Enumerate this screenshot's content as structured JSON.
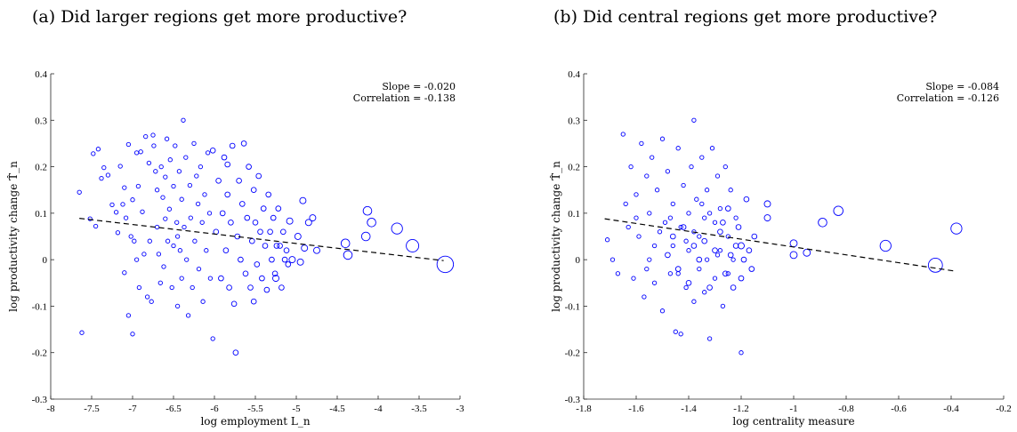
{
  "captions": [
    "(a) Did larger regions get more productive?",
    "(b) Did central regions get more productive?"
  ],
  "chart_data": [
    {
      "type": "scatter",
      "title": "(a) Did larger regions get more productive?",
      "xlabel": "log employment L_n",
      "ylabel": "log productivity change T̂_n",
      "xlim": [
        -8,
        -3
      ],
      "ylim": [
        -0.3,
        0.4
      ],
      "xticks": [
        "-8",
        "-7.5",
        "-7",
        "-6.5",
        "-6",
        "-5.5",
        "-5",
        "-4.5",
        "-4",
        "-3.5",
        "-3"
      ],
      "yticks": [
        "-0.3",
        "-0.2",
        "-0.1",
        "0",
        "0.1",
        "0.2",
        "0.3",
        "0.4"
      ],
      "annotations": [
        "Slope = -0.020",
        "Correlation = -0.138"
      ],
      "fit_line": {
        "x": [
          -7.65,
          -3.2
        ],
        "y": [
          0.089,
          -0.002
        ]
      },
      "color": "#0000ff",
      "points": [
        [
          -7.65,
          0.145,
          1
        ],
        [
          -7.62,
          -0.157,
          1
        ],
        [
          -7.52,
          0.088,
          1
        ],
        [
          -7.48,
          0.228,
          1
        ],
        [
          -7.45,
          0.072,
          1
        ],
        [
          -7.42,
          0.238,
          1
        ],
        [
          -7.38,
          0.175,
          1
        ],
        [
          -7.35,
          0.198,
          1
        ],
        [
          -7.3,
          0.182,
          1
        ],
        [
          -7.25,
          0.118,
          1
        ],
        [
          -7.2,
          0.102,
          1
        ],
        [
          -7.18,
          0.058,
          1
        ],
        [
          -7.15,
          0.201,
          1
        ],
        [
          -7.12,
          0.119,
          1
        ],
        [
          -7.1,
          -0.028,
          1
        ],
        [
          -7.08,
          0.09,
          1
        ],
        [
          -7.05,
          0.248,
          1
        ],
        [
          -7.02,
          0.05,
          1
        ],
        [
          -7.0,
          0.129,
          1
        ],
        [
          -6.98,
          0.04,
          1
        ],
        [
          -6.95,
          0.23,
          1
        ],
        [
          -6.95,
          0.0,
          1
        ],
        [
          -6.93,
          0.158,
          1
        ],
        [
          -6.9,
          0.232,
          1
        ],
        [
          -6.88,
          0.103,
          1
        ],
        [
          -6.86,
          0.012,
          1
        ],
        [
          -6.84,
          0.265,
          1
        ],
        [
          -6.82,
          -0.08,
          1
        ],
        [
          -6.8,
          0.208,
          1
        ],
        [
          -6.79,
          0.04,
          1
        ],
        [
          -6.77,
          -0.09,
          1
        ],
        [
          -6.75,
          0.268,
          1
        ],
        [
          -6.74,
          0.245,
          1
        ],
        [
          -6.72,
          0.19,
          1
        ],
        [
          -6.7,
          0.15,
          1
        ],
        [
          -6.7,
          0.07,
          1
        ],
        [
          -6.68,
          0.012,
          1
        ],
        [
          -6.66,
          -0.05,
          1
        ],
        [
          -6.65,
          0.2,
          1
        ],
        [
          -6.63,
          0.134,
          1
        ],
        [
          -6.62,
          -0.015,
          1
        ],
        [
          -6.6,
          0.088,
          1
        ],
        [
          -6.58,
          0.26,
          1
        ],
        [
          -6.57,
          0.04,
          1
        ],
        [
          -6.55,
          0.109,
          1
        ],
        [
          -6.54,
          0.215,
          1
        ],
        [
          -6.52,
          -0.06,
          1
        ],
        [
          -6.5,
          0.158,
          1
        ],
        [
          -6.5,
          0.03,
          1
        ],
        [
          -6.48,
          0.245,
          1
        ],
        [
          -6.46,
          0.08,
          1
        ],
        [
          -6.45,
          -0.1,
          1
        ],
        [
          -6.43,
          0.19,
          1
        ],
        [
          -6.42,
          0.02,
          1
        ],
        [
          -6.4,
          0.13,
          1
        ],
        [
          -6.4,
          -0.04,
          1
        ],
        [
          -6.38,
          0.3,
          1
        ],
        [
          -6.37,
          0.07,
          1
        ],
        [
          -6.35,
          0.22,
          1
        ],
        [
          -6.34,
          0.0,
          1
        ],
        [
          -6.32,
          -0.12,
          1
        ],
        [
          -6.3,
          0.16,
          1
        ],
        [
          -6.29,
          0.09,
          1
        ],
        [
          -6.27,
          -0.06,
          1
        ],
        [
          -6.25,
          0.25,
          1
        ],
        [
          -6.24,
          0.04,
          1
        ],
        [
          -6.22,
          0.18,
          1
        ],
        [
          -6.2,
          0.12,
          1
        ],
        [
          -6.19,
          -0.02,
          1
        ],
        [
          -6.17,
          0.2,
          1
        ],
        [
          -6.15,
          0.08,
          1
        ],
        [
          -6.14,
          -0.09,
          1
        ],
        [
          -6.12,
          0.14,
          1
        ],
        [
          -6.1,
          0.02,
          1
        ],
        [
          -6.08,
          0.23,
          1
        ],
        [
          -6.06,
          0.1,
          1
        ],
        [
          -6.05,
          -0.04,
          1
        ],
        [
          -6.02,
          -0.17,
          1
        ],
        [
          -7.0,
          -0.16,
          1
        ],
        [
          -7.05,
          -0.12,
          1
        ],
        [
          -6.92,
          -0.06,
          1
        ],
        [
          -7.1,
          0.155,
          1
        ],
        [
          -6.6,
          0.178,
          1
        ],
        [
          -6.45,
          0.05,
          1
        ],
        [
          -6.02,
          0.235,
          1.3
        ],
        [
          -5.98,
          0.06,
          1.3
        ],
        [
          -5.95,
          0.17,
          1.3
        ],
        [
          -5.92,
          -0.04,
          1.3
        ],
        [
          -5.9,
          0.1,
          1.3
        ],
        [
          -5.88,
          0.22,
          1.3
        ],
        [
          -5.86,
          0.02,
          1.3
        ],
        [
          -5.84,
          0.14,
          1.3
        ],
        [
          -5.82,
          -0.06,
          1.3
        ],
        [
          -5.8,
          0.08,
          1.3
        ],
        [
          -5.78,
          0.245,
          1.3
        ],
        [
          -5.76,
          -0.095,
          1.3
        ],
        [
          -5.74,
          -0.2,
          1.3
        ],
        [
          -5.72,
          0.05,
          1.3
        ],
        [
          -5.7,
          0.17,
          1.3
        ],
        [
          -5.68,
          0.0,
          1.3
        ],
        [
          -5.66,
          0.12,
          1.3
        ],
        [
          -5.64,
          0.25,
          1.3
        ],
        [
          -5.62,
          -0.03,
          1.3
        ],
        [
          -5.6,
          0.09,
          1.3
        ],
        [
          -5.58,
          0.2,
          1.3
        ],
        [
          -5.56,
          -0.06,
          1.3
        ],
        [
          -5.54,
          0.04,
          1.3
        ],
        [
          -5.52,
          0.15,
          1.3
        ],
        [
          -5.5,
          0.08,
          1.3
        ],
        [
          -5.48,
          -0.01,
          1.3
        ],
        [
          -5.46,
          0.18,
          1.3
        ],
        [
          -5.44,
          0.06,
          1.3
        ],
        [
          -5.42,
          -0.04,
          1.3
        ],
        [
          -5.4,
          0.11,
          1.3
        ],
        [
          -5.38,
          0.03,
          1.3
        ],
        [
          -5.36,
          -0.065,
          1.3
        ],
        [
          -5.34,
          0.14,
          1.3
        ],
        [
          -5.32,
          0.06,
          1.3
        ],
        [
          -5.3,
          0.0,
          1.3
        ],
        [
          -5.28,
          0.09,
          1.3
        ],
        [
          -5.26,
          -0.03,
          1.3
        ],
        [
          -5.24,
          0.03,
          1.3
        ],
        [
          -5.22,
          0.11,
          1.3
        ],
        [
          -5.2,
          0.03,
          1.3
        ],
        [
          -5.18,
          -0.06,
          1.3
        ],
        [
          -5.16,
          0.06,
          1.3
        ],
        [
          -5.14,
          0.0,
          1.3
        ],
        [
          -5.12,
          0.02,
          1.3
        ],
        [
          -5.1,
          -0.01,
          1.3
        ],
        [
          -5.84,
          0.205,
          1.3
        ],
        [
          -5.52,
          -0.09,
          1.3
        ],
        [
          -5.08,
          0.083,
          1.6
        ],
        [
          -5.05,
          0.0,
          1.6
        ],
        [
          -4.92,
          0.127,
          1.6
        ],
        [
          -4.9,
          0.025,
          1.6
        ],
        [
          -4.85,
          0.08,
          1.6
        ],
        [
          -4.8,
          0.09,
          1.6
        ],
        [
          -4.75,
          0.02,
          1.6
        ],
        [
          -4.95,
          -0.005,
          1.6
        ],
        [
          -4.98,
          0.05,
          1.6
        ],
        [
          -5.25,
          -0.04,
          1.6
        ],
        [
          -4.4,
          0.035,
          2.2
        ],
        [
          -4.37,
          0.01,
          2.2
        ],
        [
          -4.15,
          0.05,
          2.2
        ],
        [
          -4.13,
          0.105,
          2.2
        ],
        [
          -4.08,
          0.08,
          2.2
        ],
        [
          -3.77,
          0.067,
          2.8
        ],
        [
          -3.58,
          0.03,
          3.2
        ],
        [
          -3.18,
          -0.01,
          4.2
        ]
      ]
    },
    {
      "type": "scatter",
      "title": "(b) Did central regions get more productive?",
      "xlabel": "log centrality measure",
      "ylabel": "log productivity change T̂_n",
      "xlim": [
        -1.8,
        -0.2
      ],
      "ylim": [
        -0.3,
        0.4
      ],
      "xticks": [
        "-1.8",
        "-1.6",
        "-1.4",
        "-1.2",
        "-1",
        "-0.8",
        "-0.6",
        "-0.4",
        "-0.2"
      ],
      "yticks": [
        "-0.3",
        "-0.2",
        "-0.1",
        "0",
        "0.1",
        "0.2",
        "0.3",
        "0.4"
      ],
      "annotations": [
        "Slope = -0.084",
        "Correlation = -0.126"
      ],
      "fit_line": {
        "x": [
          -1.72,
          -0.38
        ],
        "y": [
          0.088,
          -0.025
        ]
      },
      "color": "#0000ff",
      "points": [
        [
          -1.71,
          0.043,
          1
        ],
        [
          -1.69,
          0.0,
          1
        ],
        [
          -1.67,
          -0.03,
          1
        ],
        [
          -1.65,
          0.27,
          1
        ],
        [
          -1.64,
          0.12,
          1
        ],
        [
          -1.63,
          0.07,
          1
        ],
        [
          -1.62,
          0.2,
          1
        ],
        [
          -1.61,
          -0.04,
          1
        ],
        [
          -1.6,
          0.14,
          1
        ],
        [
          -1.59,
          0.05,
          1
        ],
        [
          -1.58,
          0.25,
          1
        ],
        [
          -1.57,
          -0.08,
          1
        ],
        [
          -1.56,
          0.18,
          1
        ],
        [
          -1.55,
          0.1,
          1
        ],
        [
          -1.55,
          0.0,
          1
        ],
        [
          -1.54,
          0.22,
          1
        ],
        [
          -1.53,
          -0.05,
          1
        ],
        [
          -1.52,
          0.15,
          1
        ],
        [
          -1.51,
          0.06,
          1
        ],
        [
          -1.5,
          -0.11,
          1
        ],
        [
          -1.5,
          0.26,
          1
        ],
        [
          -1.49,
          0.08,
          1
        ],
        [
          -1.48,
          0.19,
          1
        ],
        [
          -1.47,
          -0.03,
          1
        ],
        [
          -1.46,
          0.12,
          1
        ],
        [
          -1.46,
          0.03,
          1
        ],
        [
          -1.45,
          -0.155,
          1
        ],
        [
          -1.44,
          0.24,
          1
        ],
        [
          -1.43,
          0.07,
          1
        ],
        [
          -1.43,
          -0.16,
          1
        ],
        [
          -1.42,
          0.16,
          1
        ],
        [
          -1.41,
          -0.06,
          1
        ],
        [
          -1.4,
          0.1,
          1
        ],
        [
          -1.4,
          0.02,
          1
        ],
        [
          -1.39,
          0.2,
          1
        ],
        [
          -1.38,
          -0.09,
          1
        ],
        [
          -1.38,
          0.3,
          1
        ],
        [
          -1.37,
          0.13,
          1
        ],
        [
          -1.36,
          0.05,
          1
        ],
        [
          -1.36,
          -0.02,
          1
        ],
        [
          -1.35,
          0.22,
          1
        ],
        [
          -1.34,
          0.09,
          1
        ],
        [
          -1.34,
          -0.07,
          1
        ],
        [
          -1.33,
          0.15,
          1
        ],
        [
          -1.33,
          0.0,
          1
        ],
        [
          -1.32,
          -0.17,
          1
        ],
        [
          -1.31,
          0.24,
          1
        ],
        [
          -1.3,
          0.08,
          1
        ],
        [
          -1.3,
          -0.04,
          1
        ],
        [
          -1.29,
          0.18,
          1
        ],
        [
          -1.28,
          0.11,
          1
        ],
        [
          -1.28,
          0.02,
          1
        ],
        [
          -1.27,
          -0.1,
          1
        ],
        [
          -1.26,
          0.2,
          1
        ],
        [
          -1.25,
          0.05,
          1
        ],
        [
          -1.25,
          -0.03,
          1
        ],
        [
          -1.24,
          0.15,
          1
        ],
        [
          -1.23,
          0.0,
          1
        ],
        [
          -1.22,
          0.09,
          1
        ],
        [
          -1.2,
          -0.2,
          1
        ],
        [
          -1.53,
          0.03,
          1
        ],
        [
          -1.47,
          0.09,
          1
        ],
        [
          -1.41,
          0.04,
          1
        ],
        [
          -1.35,
          0.12,
          1
        ],
        [
          -1.56,
          -0.02,
          1
        ],
        [
          -1.44,
          -0.03,
          1
        ],
        [
          -1.32,
          0.1,
          1
        ],
        [
          -1.6,
          0.09,
          1
        ],
        [
          -1.38,
          0.06,
          1
        ],
        [
          -1.29,
          0.01,
          1
        ],
        [
          -1.48,
          0.01,
          1.3
        ],
        [
          -1.46,
          0.05,
          1.3
        ],
        [
          -1.44,
          -0.02,
          1.3
        ],
        [
          -1.42,
          0.07,
          1.3
        ],
        [
          -1.4,
          -0.05,
          1.3
        ],
        [
          -1.38,
          0.03,
          1.3
        ],
        [
          -1.36,
          0.0,
          1.3
        ],
        [
          -1.34,
          0.04,
          1.3
        ],
        [
          -1.32,
          -0.06,
          1.3
        ],
        [
          -1.3,
          0.02,
          1.3
        ],
        [
          -1.28,
          0.06,
          1.3
        ],
        [
          -1.26,
          -0.03,
          1.3
        ],
        [
          -1.24,
          0.01,
          1.3
        ],
        [
          -1.22,
          0.03,
          1.3
        ],
        [
          -1.2,
          -0.04,
          1.3
        ],
        [
          -1.19,
          0.0,
          1.3
        ],
        [
          -1.18,
          0.13,
          1.3
        ],
        [
          -1.17,
          0.02,
          1.3
        ],
        [
          -1.16,
          -0.02,
          1.3
        ],
        [
          -1.15,
          0.05,
          1.3
        ],
        [
          -1.27,
          0.08,
          1.3
        ],
        [
          -1.23,
          -0.06,
          1.3
        ],
        [
          -1.21,
          0.07,
          1.3
        ],
        [
          -1.25,
          0.11,
          1.3
        ],
        [
          -1.1,
          0.12,
          1.6
        ],
        [
          -1.1,
          0.09,
          1.6
        ],
        [
          -1.2,
          0.03,
          1.6
        ],
        [
          -1.0,
          0.035,
          1.8
        ],
        [
          -1.0,
          0.01,
          1.8
        ],
        [
          -0.95,
          0.015,
          1.8
        ],
        [
          -0.89,
          0.08,
          2.2
        ],
        [
          -0.83,
          0.105,
          2.4
        ],
        [
          -0.65,
          0.03,
          2.8
        ],
        [
          -0.46,
          -0.012,
          3.6
        ],
        [
          -0.38,
          0.067,
          2.8
        ]
      ]
    }
  ]
}
